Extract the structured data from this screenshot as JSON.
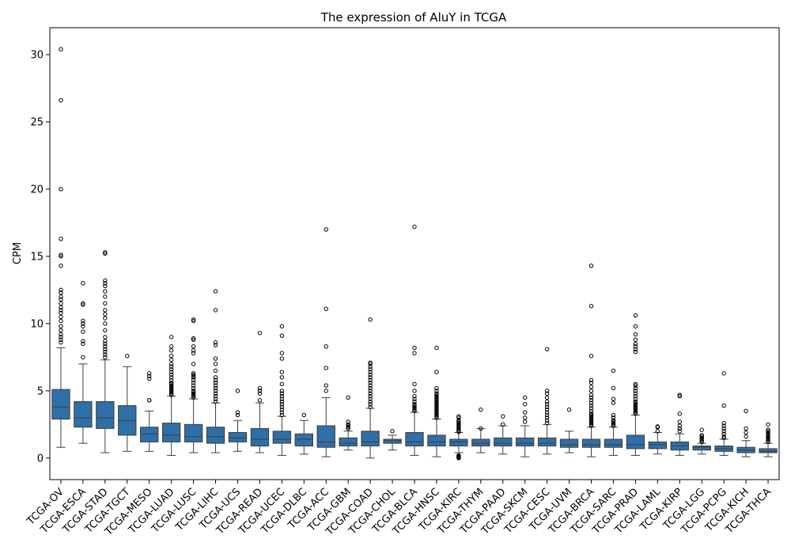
{
  "chart_data": {
    "type": "box",
    "title": "The expression of AluY in TCGA",
    "ylabel": "CPM",
    "xlabel": "",
    "ylim": [
      -1.6,
      32.0
    ],
    "yticks": [
      0,
      5,
      10,
      15,
      20,
      25,
      30
    ],
    "grid": false,
    "legend": "none",
    "box_color": "#2f6fa7",
    "categories": [
      "TCGA-OV",
      "TCGA-ESCA",
      "TCGA-STAD",
      "TCGA-TGCT",
      "TCGA-MESO",
      "TCGA-LUAD",
      "TCGA-LUSC",
      "TCGA-LIHC",
      "TCGA-UCS",
      "TCGA-READ",
      "TCGA-UCEC",
      "TCGA-DLBC",
      "TCGA-ACC",
      "TCGA-GBM",
      "TCGA-COAD",
      "TCGA-CHOL",
      "TCGA-BLCA",
      "TCGA-HNSC",
      "TCGA-KIRC",
      "TCGA-THYM",
      "TCGA-PAAD",
      "TCGA-SKCM",
      "TCGA-CESC",
      "TCGA-UVM",
      "TCGA-BRCA",
      "TCGA-SARC",
      "TCGA-PRAD",
      "TCGA-LAML",
      "TCGA-KIRP",
      "TCGA-LGG",
      "TCGA-PCPG",
      "TCGA-KICH",
      "TCGA-THCA"
    ],
    "boxes": [
      {
        "whislo": 0.8,
        "q1": 2.9,
        "med": 3.8,
        "q3": 5.1,
        "whishi": 8.2,
        "fliers": [
          8.6,
          8.8,
          9.0,
          9.2,
          9.5,
          9.8,
          10.2,
          10.5,
          10.8,
          11.0,
          11.2,
          11.5,
          11.8,
          12.0,
          12.3,
          12.5,
          14.3,
          15.0,
          15.1,
          16.3,
          20.0,
          26.6,
          30.4
        ]
      },
      {
        "whislo": 1.1,
        "q1": 2.3,
        "med": 3.0,
        "q3": 4.2,
        "whishi": 7.0,
        "fliers": [
          7.5,
          8.5,
          8.7,
          9.4,
          9.8,
          10.0,
          10.2,
          11.4,
          11.5,
          13.0
        ]
      },
      {
        "whislo": 0.4,
        "q1": 2.2,
        "med": 3.0,
        "q3": 4.2,
        "whishi": 7.3,
        "fliers": [
          7.5,
          7.7,
          7.9,
          8.1,
          8.3,
          8.5,
          8.7,
          9.0,
          9.5,
          10.0,
          10.4,
          10.7,
          11.0,
          11.5,
          12.0,
          12.4,
          12.8,
          13.0,
          13.2,
          15.2,
          15.3
        ]
      },
      {
        "whislo": 0.5,
        "q1": 1.7,
        "med": 2.8,
        "q3": 3.9,
        "whishi": 6.8,
        "fliers": [
          7.6
        ]
      },
      {
        "whislo": 0.5,
        "q1": 1.2,
        "med": 1.8,
        "q3": 2.3,
        "whishi": 3.5,
        "fliers": [
          4.3,
          4.3,
          5.9,
          6.1,
          6.3
        ]
      },
      {
        "whislo": 0.2,
        "q1": 1.2,
        "med": 1.7,
        "q3": 2.6,
        "whishi": 4.6,
        "fliers": [
          4.7,
          4.8,
          4.9,
          5.0,
          5.1,
          5.2,
          5.3,
          5.4,
          5.5,
          5.6,
          5.8,
          6.0,
          6.2,
          6.4,
          6.6,
          6.8,
          7.0,
          7.3,
          7.6,
          8.0,
          8.3,
          9.0
        ]
      },
      {
        "whislo": 0.4,
        "q1": 1.2,
        "med": 1.6,
        "q3": 2.5,
        "whishi": 4.4,
        "fliers": [
          4.5,
          4.6,
          4.7,
          4.8,
          4.9,
          5.0,
          5.2,
          5.4,
          5.6,
          5.8,
          6.0,
          6.1,
          6.2,
          6.3,
          7.0,
          7.8,
          8.0,
          8.3,
          8.8,
          8.9,
          10.2,
          10.3
        ]
      },
      {
        "whislo": 0.4,
        "q1": 1.1,
        "med": 1.6,
        "q3": 2.3,
        "whishi": 4.1,
        "fliers": [
          4.2,
          4.4,
          4.6,
          4.8,
          5.0,
          5.2,
          5.4,
          5.6,
          5.8,
          6.0,
          6.5,
          7.0,
          7.4,
          8.4,
          8.6,
          11.0,
          12.4
        ]
      },
      {
        "whislo": 0.5,
        "q1": 1.2,
        "med": 1.5,
        "q3": 1.9,
        "whishi": 2.8,
        "fliers": [
          3.2,
          3.4,
          5.0
        ]
      },
      {
        "whislo": 0.4,
        "q1": 0.9,
        "med": 1.4,
        "q3": 2.2,
        "whishi": 4.1,
        "fliers": [
          4.3,
          4.8,
          5.0,
          5.2,
          9.3
        ]
      },
      {
        "whislo": 0.2,
        "q1": 1.1,
        "med": 1.4,
        "q3": 2.0,
        "whishi": 3.1,
        "fliers": [
          3.2,
          3.4,
          3.6,
          3.8,
          4.0,
          4.2,
          4.4,
          4.6,
          4.8,
          5.0,
          5.5,
          6.0,
          6.4,
          7.4,
          7.8,
          9.1,
          9.8
        ]
      },
      {
        "whislo": 0.3,
        "q1": 0.9,
        "med": 1.4,
        "q3": 1.8,
        "whishi": 2.8,
        "fliers": [
          3.2
        ]
      },
      {
        "whislo": 0.1,
        "q1": 0.8,
        "med": 1.2,
        "q3": 2.4,
        "whishi": 4.5,
        "fliers": [
          5.0,
          5.4,
          6.7,
          8.3,
          11.1,
          17.0
        ]
      },
      {
        "whislo": 0.6,
        "q1": 0.9,
        "med": 1.1,
        "q3": 1.5,
        "whishi": 2.0,
        "fliers": [
          2.2,
          2.3,
          2.4,
          2.5,
          2.7,
          4.5
        ]
      },
      {
        "whislo": 0.0,
        "q1": 0.9,
        "med": 1.2,
        "q3": 2.0,
        "whishi": 3.7,
        "fliers": [
          3.8,
          4.0,
          4.2,
          4.4,
          4.6,
          4.8,
          5.0,
          5.2,
          5.4,
          5.6,
          5.8,
          6.0,
          6.2,
          6.4,
          6.6,
          6.8,
          7.0,
          7.1,
          10.3
        ]
      },
      {
        "whislo": 0.6,
        "q1": 1.1,
        "med": 1.3,
        "q3": 1.4,
        "whishi": 1.7,
        "fliers": [
          2.0
        ]
      },
      {
        "whislo": 0.2,
        "q1": 0.9,
        "med": 1.2,
        "q3": 1.9,
        "whishi": 3.4,
        "fliers": [
          3.5,
          3.6,
          3.7,
          3.8,
          3.9,
          4.0,
          4.2,
          4.4,
          4.6,
          5.0,
          5.5,
          7.8,
          8.2,
          17.2
        ]
      },
      {
        "whislo": 0.1,
        "q1": 0.9,
        "med": 1.2,
        "q3": 1.7,
        "whishi": 2.9,
        "fliers": [
          3.0,
          3.1,
          3.2,
          3.3,
          3.4,
          3.5,
          3.6,
          3.7,
          3.8,
          3.9,
          4.0,
          4.1,
          4.2,
          4.3,
          4.4,
          4.5,
          4.6,
          4.7,
          4.8,
          5.0,
          5.2,
          6.4,
          8.2
        ]
      },
      {
        "whislo": 0.4,
        "q1": 0.9,
        "med": 1.2,
        "q3": 1.4,
        "whishi": 1.9,
        "fliers": [
          0.0,
          0.05,
          0.1,
          0.15,
          0.2,
          1.95,
          2.0,
          2.1,
          2.2,
          2.3,
          2.4,
          2.5,
          2.6,
          2.7,
          2.8,
          3.0,
          3.1
        ]
      },
      {
        "whislo": 0.4,
        "q1": 0.9,
        "med": 1.1,
        "q3": 1.4,
        "whishi": 2.2,
        "fliers": [
          2.2,
          3.6
        ]
      },
      {
        "whislo": 0.3,
        "q1": 0.9,
        "med": 1.1,
        "q3": 1.5,
        "whishi": 2.4,
        "fliers": [
          2.5,
          3.1
        ]
      },
      {
        "whislo": 0.1,
        "q1": 0.9,
        "med": 1.1,
        "q3": 1.5,
        "whishi": 2.4,
        "fliers": [
          2.7,
          3.0,
          3.4,
          4.0,
          4.5
        ]
      },
      {
        "whislo": 0.3,
        "q1": 0.9,
        "med": 1.1,
        "q3": 1.5,
        "whishi": 2.5,
        "fliers": [
          2.6,
          2.8,
          3.0,
          3.2,
          3.4,
          3.6,
          3.8,
          4.0,
          4.2,
          4.5,
          4.8,
          5.0,
          8.1
        ]
      },
      {
        "whislo": 0.4,
        "q1": 0.8,
        "med": 1.0,
        "q3": 1.4,
        "whishi": 2.0,
        "fliers": [
          3.6
        ]
      },
      {
        "whislo": 0.1,
        "q1": 0.8,
        "med": 1.0,
        "q3": 1.4,
        "whishi": 2.3,
        "fliers": [
          2.4,
          2.5,
          2.6,
          2.7,
          2.8,
          2.9,
          3.0,
          3.1,
          3.2,
          3.3,
          3.5,
          3.7,
          3.9,
          4.1,
          4.3,
          4.5,
          4.7,
          5.0,
          5.3,
          5.6,
          5.8,
          7.6,
          11.3,
          14.3
        ]
      },
      {
        "whislo": 0.2,
        "q1": 0.8,
        "med": 1.0,
        "q3": 1.4,
        "whishi": 2.3,
        "fliers": [
          2.4,
          2.5,
          2.6,
          2.7,
          2.8,
          3.0,
          3.2,
          4.1,
          4.4,
          5.2,
          6.5
        ]
      },
      {
        "whislo": 0.2,
        "q1": 0.7,
        "med": 1.0,
        "q3": 1.7,
        "whishi": 3.2,
        "fliers": [
          3.3,
          3.4,
          3.5,
          3.6,
          3.7,
          3.8,
          3.9,
          4.0,
          4.1,
          4.2,
          4.4,
          4.6,
          4.8,
          5.0,
          5.2,
          5.4,
          5.5,
          7.9,
          8.1,
          8.3,
          8.5,
          8.8,
          9.2,
          9.8,
          10.6
        ]
      },
      {
        "whislo": 0.3,
        "q1": 0.7,
        "med": 1.0,
        "q3": 1.2,
        "whishi": 1.9,
        "fliers": [
          2.0,
          2.3,
          2.35
        ]
      },
      {
        "whislo": 0.2,
        "q1": 0.6,
        "med": 0.9,
        "q3": 1.2,
        "whishi": 1.8,
        "fliers": [
          2.0,
          2.2,
          2.4,
          2.7,
          3.3,
          4.6,
          4.7
        ]
      },
      {
        "whislo": 0.3,
        "q1": 0.6,
        "med": 0.8,
        "q3": 0.9,
        "whishi": 1.1,
        "fliers": [
          1.2,
          1.3,
          1.4,
          1.5,
          1.6,
          1.7,
          2.1
        ]
      },
      {
        "whislo": 0.2,
        "q1": 0.5,
        "med": 0.7,
        "q3": 0.9,
        "whishi": 1.4,
        "fliers": [
          1.5,
          1.6,
          1.8,
          2.0,
          2.2,
          2.4,
          2.6,
          3.9,
          6.3
        ]
      },
      {
        "whislo": 0.1,
        "q1": 0.4,
        "med": 0.6,
        "q3": 0.8,
        "whishi": 1.3,
        "fliers": [
          1.6,
          1.9,
          2.2,
          3.5
        ]
      },
      {
        "whislo": 0.1,
        "q1": 0.4,
        "med": 0.5,
        "q3": 0.7,
        "whishi": 1.1,
        "fliers": [
          1.2,
          1.3,
          1.4,
          1.5,
          1.6,
          1.7,
          1.8,
          1.9,
          2.0,
          2.1,
          2.5
        ]
      }
    ]
  }
}
